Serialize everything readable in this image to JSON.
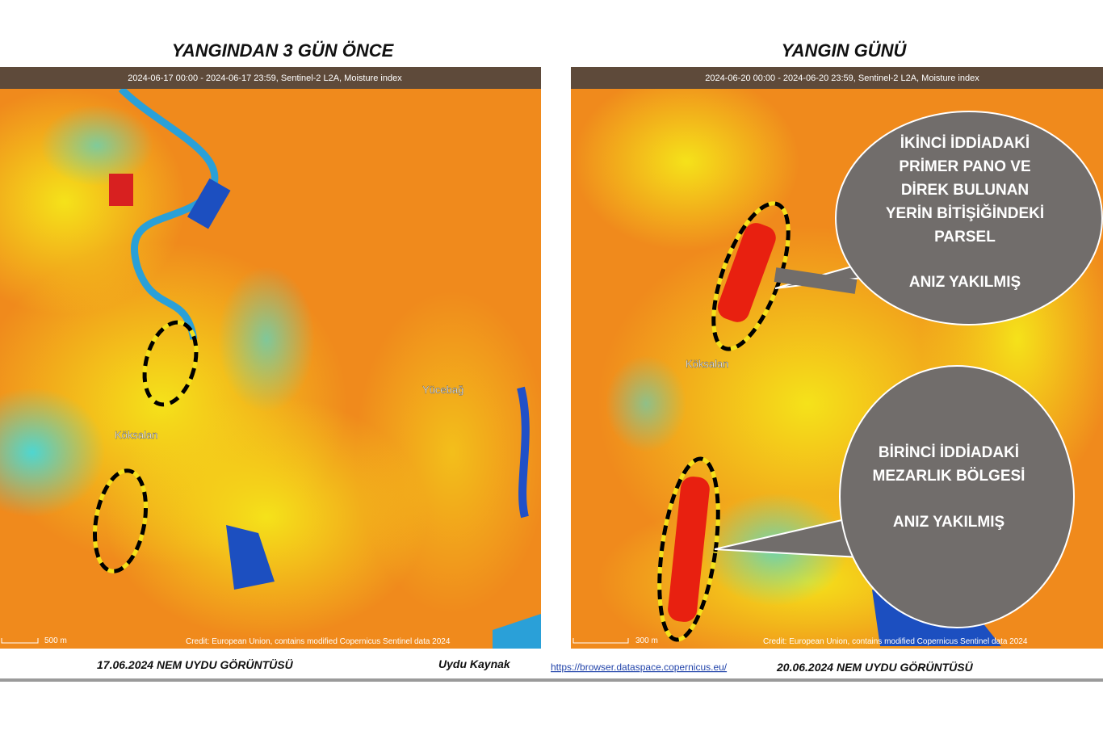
{
  "left": {
    "title": "YANGINDAN 3 GÜN ÖNCE",
    "info_bar": "2024-06-17 00:00 - 2024-06-17 23:59, Sentinel-2 L2A, Moisture index",
    "places": [
      "Köksalan",
      "Yücebağ"
    ],
    "scale": "500 m",
    "credit": "Credit: European Union, contains modified Copernicus Sentinel data 2024",
    "caption": "17.06.2024  NEM  UYDU  GÖRÜNTÜSÜ"
  },
  "right": {
    "title": "YANGIN GÜNÜ",
    "info_bar": "2024-06-20 00:00 - 2024-06-20 23:59, Sentinel-2 L2A, Moisture index",
    "places": [
      "Köksalan"
    ],
    "scale": "300 m",
    "credit": "Credit: European Union, contains modified Copernicus Sentinel data 2024",
    "caption": "20.06.2024  NEM UYDU GÖRÜNTÜSÜ"
  },
  "source": {
    "label": "Uydu Kaynak",
    "url": "https://browser.dataspace.copernicus.eu/"
  },
  "callouts": [
    {
      "lines": [
        "İKİNCİ  İDDİADAKİ",
        "PRİMER PANO VE",
        "DİREK BULUNAN",
        "YERİN BİTİŞİĞİNDEKİ",
        "PARSEL"
      ],
      "note": "ANIZ YAKILMIŞ"
    },
    {
      "lines": [
        "BİRİNCİ  İDDİADAKİ",
        "MEZARLIK BÖLGESİ"
      ],
      "note": "ANIZ YAKILMIŞ"
    }
  ]
}
